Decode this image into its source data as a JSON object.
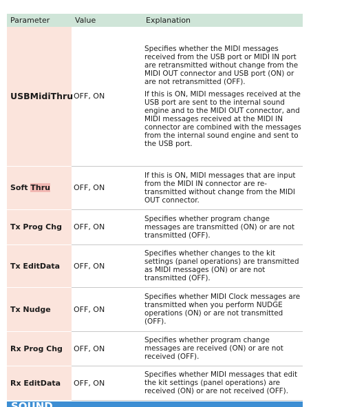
{
  "table": {
    "headers": [
      "Parameter",
      "Value",
      "Explanation"
    ],
    "rows": [
      {
        "name": "USBMidiThru",
        "value": "OFF, ON",
        "explanation": [
          "Specifies whether the MIDI messages received from the USB port or MIDI IN port are retransmitted without change from the MIDI OUT connector and USB port (ON) or are not retransmitted (OFF).",
          "If this is ON, MIDI messages received at the USB port are sent to the internal sound engine and to the MIDI OUT connector, and MIDI messages received at the MIDI IN connector are combined with the messages from the internal sound engine and sent to the USB port."
        ]
      },
      {
        "name_parts": [
          "Soft ",
          "Thru"
        ],
        "value": "OFF, ON",
        "explanation": [
          "If this is ON, MIDI messages that are input from the MIDI IN connector are re-transmitted without change from the MIDI OUT connector."
        ]
      },
      {
        "name": "Tx Prog Chg",
        "value": "OFF, ON",
        "explanation": [
          "Specifies whether program change messages are transmitted (ON) or are not transmitted (OFF)."
        ]
      },
      {
        "name": "Tx EditData",
        "value": "OFF, ON",
        "explanation": [
          "Specifies whether changes to the kit settings (panel operations) are transmitted as MIDI messages (ON) or are not transmitted (OFF)."
        ]
      },
      {
        "name": "Tx Nudge",
        "value": "OFF, ON",
        "explanation": [
          "Specifies whether MIDI Clock messages are transmitted when you perform NUDGE operations (ON) or are not transmitted (OFF)."
        ]
      },
      {
        "name": "Rx Prog Chg",
        "value": "OFF, ON",
        "explanation": [
          "Specifies whether program change messages are received (ON) or are not received (OFF)."
        ]
      },
      {
        "name": "Rx EditData",
        "value": "OFF, ON",
        "explanation": [
          "Specifies whether MIDI messages that edit the kit settings (panel operations) are received (ON) or are not received (OFF)."
        ]
      }
    ]
  },
  "section": {
    "title": "SOUND"
  },
  "colors": {
    "header_bg": "#cfe5d8",
    "param_cell_bg": "#fbe4dc",
    "highlight": "#f2b8b3",
    "section_bar": "#3d8ed3"
  }
}
